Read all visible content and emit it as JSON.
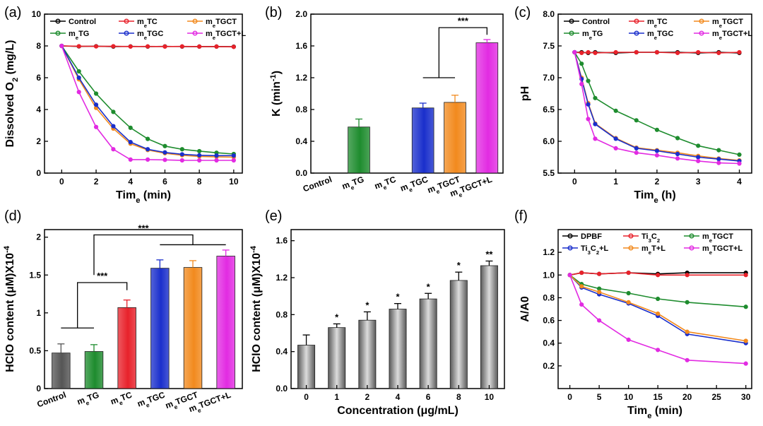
{
  "chart_data": [
    {
      "id": "a",
      "type": "line",
      "panel_label": "(a)",
      "xlabel": "Time (min)",
      "ylabel": "Dissolved O₂ (mg/L)",
      "xlim": [
        -1,
        10.5
      ],
      "ylim": [
        0,
        10
      ],
      "xticks": [
        0,
        2,
        4,
        6,
        8,
        10
      ],
      "yticks": [
        0,
        2,
        4,
        6,
        8,
        10
      ],
      "legend": "top, 3 columns",
      "x": [
        0,
        1,
        2,
        3,
        4,
        5,
        6,
        7,
        8,
        9,
        10
      ],
      "series": [
        {
          "name": "Control",
          "color": "#000000",
          "values": [
            8,
            7.97,
            7.98,
            7.96,
            7.97,
            7.96,
            7.97,
            7.96,
            7.96,
            7.96,
            7.95
          ]
        },
        {
          "name": "meTC",
          "color": "#e8222b",
          "values": [
            8,
            7.98,
            7.97,
            7.98,
            7.96,
            7.97,
            7.96,
            7.97,
            7.96,
            7.96,
            7.94
          ]
        },
        {
          "name": "meTGCT",
          "color": "#f28a1e",
          "values": [
            8,
            5.9,
            4.1,
            2.8,
            1.85,
            1.45,
            1.25,
            1.12,
            1.05,
            1.02,
            1.0
          ]
        },
        {
          "name": "meTG",
          "color": "#1e8c2e",
          "values": [
            8,
            6.4,
            5.0,
            3.85,
            2.85,
            2.15,
            1.7,
            1.5,
            1.38,
            1.28,
            1.2
          ]
        },
        {
          "name": "meTGC",
          "color": "#1a2fcc",
          "values": [
            8,
            6.0,
            4.3,
            2.95,
            1.95,
            1.5,
            1.3,
            1.18,
            1.12,
            1.1,
            1.1
          ]
        },
        {
          "name": "meTGCT+L",
          "color": "#e22be2",
          "values": [
            8,
            5.1,
            2.9,
            1.5,
            0.85,
            0.85,
            0.83,
            0.8,
            0.8,
            0.8,
            0.8
          ]
        }
      ]
    },
    {
      "id": "b",
      "type": "bar",
      "panel_label": "(b)",
      "xlabel": "",
      "ylabel": "K (min⁻¹)",
      "ylim": [
        0,
        2.0
      ],
      "yticks": [
        0.0,
        0.4,
        0.8,
        1.2,
        1.6,
        2.0
      ],
      "categories": [
        "Control",
        "meTG",
        "meTC",
        "meTGC",
        "meTGCT",
        "meTGCT+L"
      ],
      "values": [
        0,
        0.58,
        0,
        0.82,
        0.89,
        1.64
      ],
      "errors": [
        0,
        0.1,
        0,
        0.06,
        0.09,
        0.04
      ],
      "colors": [
        "#888888",
        "#1e8c2e",
        "#e8222b",
        "#1a2fcc",
        "#f28a1e",
        "#e22be2"
      ],
      "annotations": [
        "***"
      ]
    },
    {
      "id": "c",
      "type": "line",
      "panel_label": "(c)",
      "xlabel": "Time (h)",
      "ylabel": "pH",
      "xlim": [
        -0.4,
        4.3
      ],
      "ylim": [
        5.5,
        8.0
      ],
      "xticks": [
        0,
        1,
        2,
        3,
        4
      ],
      "yticks": [
        5.5,
        6.0,
        6.5,
        7.0,
        7.5,
        8.0
      ],
      "legend": "top, 3 columns",
      "x": [
        0,
        0.17,
        0.33,
        0.5,
        1,
        1.5,
        2,
        2.5,
        3,
        3.5,
        4
      ],
      "series": [
        {
          "name": "Control",
          "color": "#000000",
          "values": [
            7.4,
            7.4,
            7.39,
            7.4,
            7.39,
            7.4,
            7.4,
            7.4,
            7.39,
            7.4,
            7.39
          ]
        },
        {
          "name": "meTC",
          "color": "#e8222b",
          "values": [
            7.4,
            7.39,
            7.4,
            7.39,
            7.4,
            7.4,
            7.4,
            7.39,
            7.4,
            7.39,
            7.4
          ]
        },
        {
          "name": "meTGCT",
          "color": "#f28a1e",
          "values": [
            7.4,
            7.0,
            6.6,
            6.28,
            6.05,
            5.9,
            5.86,
            5.82,
            5.77,
            5.73,
            5.7
          ]
        },
        {
          "name": "meTG",
          "color": "#1e8c2e",
          "values": [
            7.4,
            7.22,
            6.95,
            6.68,
            6.48,
            6.33,
            6.18,
            6.05,
            5.93,
            5.86,
            5.79
          ]
        },
        {
          "name": "meTGC",
          "color": "#1a2fcc",
          "values": [
            7.4,
            6.98,
            6.58,
            6.27,
            6.04,
            5.89,
            5.85,
            5.8,
            5.75,
            5.72,
            5.69
          ]
        },
        {
          "name": "meTGCT+L",
          "color": "#e22be2",
          "values": [
            7.4,
            6.9,
            6.35,
            6.04,
            5.89,
            5.82,
            5.78,
            5.73,
            5.69,
            5.66,
            5.65
          ]
        }
      ]
    },
    {
      "id": "d",
      "type": "bar",
      "panel_label": "(d)",
      "xlabel": "",
      "ylabel": "HClO content (μM)",
      "ymult": "X10⁻⁴",
      "ylim": [
        0,
        2.1
      ],
      "yticks": [
        0,
        0.5,
        1,
        1.5,
        2
      ],
      "categories": [
        "Control",
        "meTG",
        "meTC",
        "meTGC",
        "meTGCT",
        "meTGCT+L"
      ],
      "values": [
        0.47,
        0.49,
        1.07,
        1.59,
        1.6,
        1.75
      ],
      "errors": [
        0.12,
        0.09,
        0.1,
        0.11,
        0.09,
        0.08
      ],
      "colors": [
        "#555555",
        "#1e8c2e",
        "#e8222b",
        "#1a2fcc",
        "#f28a1e",
        "#e22be2"
      ],
      "annotations": [
        "***",
        "***"
      ]
    },
    {
      "id": "e",
      "type": "bar",
      "panel_label": "(e)",
      "xlabel": "Concentration (μg/mL)",
      "ylabel": "HClO content (μM)",
      "ymult": "X10⁻⁴",
      "ylim": [
        0,
        1.72
      ],
      "yticks": [
        0.0,
        0.4,
        0.8,
        1.2,
        1.6
      ],
      "categories": [
        "0",
        "1",
        "2",
        "4",
        "6",
        "8",
        "10"
      ],
      "values": [
        0.47,
        0.66,
        0.74,
        0.86,
        0.97,
        1.17,
        1.33
      ],
      "errors": [
        0.11,
        0.04,
        0.09,
        0.06,
        0.06,
        0.09,
        0.05
      ],
      "significance": [
        "",
        "*",
        "*",
        "*",
        "*",
        "*",
        "**"
      ]
    },
    {
      "id": "f",
      "type": "line",
      "panel_label": "(f)",
      "xlabel": "Time (min)",
      "ylabel": "A/A0",
      "xlim": [
        -2,
        31
      ],
      "ylim": [
        0,
        1.4
      ],
      "xticks": [
        0,
        5,
        10,
        15,
        20,
        25,
        30
      ],
      "yticks": [
        0.2,
        0.4,
        0.6,
        0.8,
        1.0,
        1.2
      ],
      "legend": "top, 3 columns",
      "x": [
        0,
        2,
        5,
        10,
        15,
        20,
        30
      ],
      "series": [
        {
          "name": "DPBF",
          "color": "#000000",
          "values": [
            1.0,
            1.02,
            1.01,
            1.02,
            1.01,
            1.02,
            1.02
          ]
        },
        {
          "name": "Ti₃C₂",
          "color": "#e8222b",
          "values": [
            1.0,
            1.02,
            1.01,
            1.02,
            1.0,
            1.0,
            1.0
          ]
        },
        {
          "name": "meTGCT",
          "color": "#1e8c2e",
          "values": [
            1.0,
            0.92,
            0.88,
            0.84,
            0.79,
            0.76,
            0.72
          ]
        },
        {
          "name": "Ti₃C₂+L",
          "color": "#1a2fcc",
          "values": [
            1.0,
            0.89,
            0.83,
            0.75,
            0.64,
            0.48,
            0.4
          ]
        },
        {
          "name": "meT+L",
          "color": "#f28a1e",
          "values": [
            1.0,
            0.9,
            0.85,
            0.76,
            0.66,
            0.5,
            0.42
          ]
        },
        {
          "name": "meTGCT+L",
          "color": "#e22be2",
          "values": [
            1.0,
            0.74,
            0.6,
            0.43,
            0.34,
            0.25,
            0.22
          ]
        }
      ]
    }
  ]
}
